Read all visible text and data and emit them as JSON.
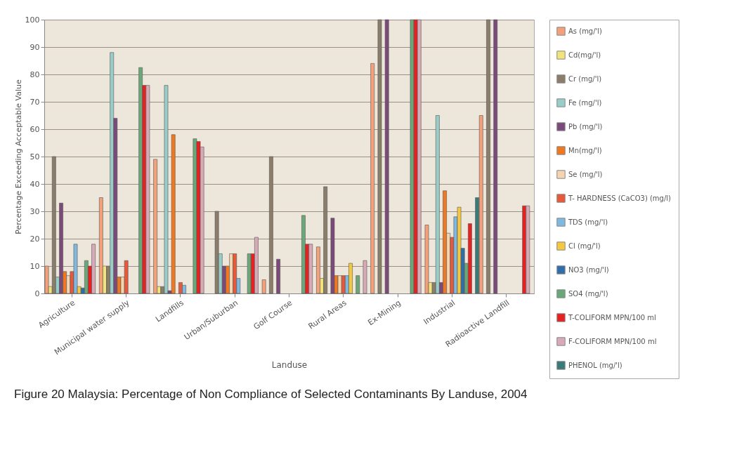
{
  "chart_data": {
    "type": "bar",
    "title": "Figure 20 Malaysia: Percentage of Non Compliance of Selected Contaminants By Landuse, 2004",
    "xlabel": "Landuse",
    "ylabel": "Percentage Exceeding Acceptable Value",
    "categories": [
      "Agriculture",
      "Municipal water supply",
      "Landfills",
      "Urban/Suburban",
      "Golf Course",
      "Rural Areas",
      "Ex-Mining",
      "Industrial",
      "Radioactive Landfill"
    ],
    "series": [
      {
        "name": "As (mg/'l)",
        "color": "#f4a07a",
        "values": [
          10,
          35,
          49,
          null,
          5,
          17,
          84,
          25,
          65
        ]
      },
      {
        "name": "Cd(mg/'l)",
        "color": "#f2e47a",
        "values": [
          2.5,
          10,
          2.5,
          null,
          null,
          5.5,
          null,
          4,
          null
        ]
      },
      {
        "name": "Cr (mg/'l)",
        "color": "#8a7d6a",
        "values": [
          50,
          10,
          2.5,
          30,
          50,
          39,
          100,
          4,
          100
        ]
      },
      {
        "name": "Fe (mg/'l)",
        "color": "#98cdc8",
        "values": [
          6,
          88,
          76,
          14.5,
          null,
          null,
          null,
          65,
          null
        ]
      },
      {
        "name": "Pb (mg/'l)",
        "color": "#7b4a7b",
        "values": [
          33,
          64,
          1,
          10,
          12.5,
          27.5,
          100,
          4,
          100
        ]
      },
      {
        "name": "Mn(mg/'l)",
        "color": "#f07820",
        "values": [
          8,
          6,
          58,
          10,
          null,
          6.5,
          null,
          37.5,
          null
        ]
      },
      {
        "name": "Se (mg/'l)",
        "color": "#f5d5b0",
        "values": [
          6.5,
          6,
          null,
          14.5,
          null,
          6.5,
          null,
          22,
          null
        ]
      },
      {
        "name": "T- HARDNESS (CaCO3) (mg/l)",
        "color": "#e8583a",
        "values": [
          8,
          12,
          4,
          14.5,
          null,
          6.5,
          null,
          20.5,
          null
        ]
      },
      {
        "name": "TDS (mg/'l)",
        "color": "#80b8e0",
        "values": [
          18,
          null,
          3,
          5.5,
          null,
          6.5,
          null,
          28,
          null
        ]
      },
      {
        "name": "Cl (mg/'l)",
        "color": "#f5c842",
        "values": [
          2.5,
          null,
          null,
          null,
          null,
          11,
          null,
          31.5,
          null
        ]
      },
      {
        "name": "NO3 (mg/'l)",
        "color": "#2f6ea8",
        "values": [
          2,
          null,
          null,
          null,
          null,
          null,
          null,
          16.5,
          null
        ]
      },
      {
        "name": "SO4 (mg/'l)",
        "color": "#6aa87a",
        "values": [
          12,
          82.5,
          56.5,
          14.5,
          28.5,
          6.5,
          100,
          11,
          null
        ]
      },
      {
        "name": "T-COLIFORM  MPN/100 ml",
        "color": "#e82020",
        "values": [
          10,
          76,
          55.5,
          14.5,
          18,
          null,
          100,
          25.5,
          32
        ]
      },
      {
        "name": "F-COLIFORM  MPN/100 ml",
        "color": "#d8aab8",
        "values": [
          18,
          76,
          53.5,
          20.5,
          18,
          12,
          100,
          null,
          32
        ]
      },
      {
        "name": "PHENOL (mg/'l)",
        "color": "#3a7a78",
        "values": [
          null,
          null,
          null,
          null,
          null,
          null,
          null,
          35,
          null
        ]
      }
    ],
    "ylim": [
      0,
      100
    ],
    "yticks": [
      0,
      10,
      20,
      30,
      40,
      50,
      60,
      70,
      80,
      90,
      100
    ],
    "grid": "y",
    "legend": "right"
  }
}
